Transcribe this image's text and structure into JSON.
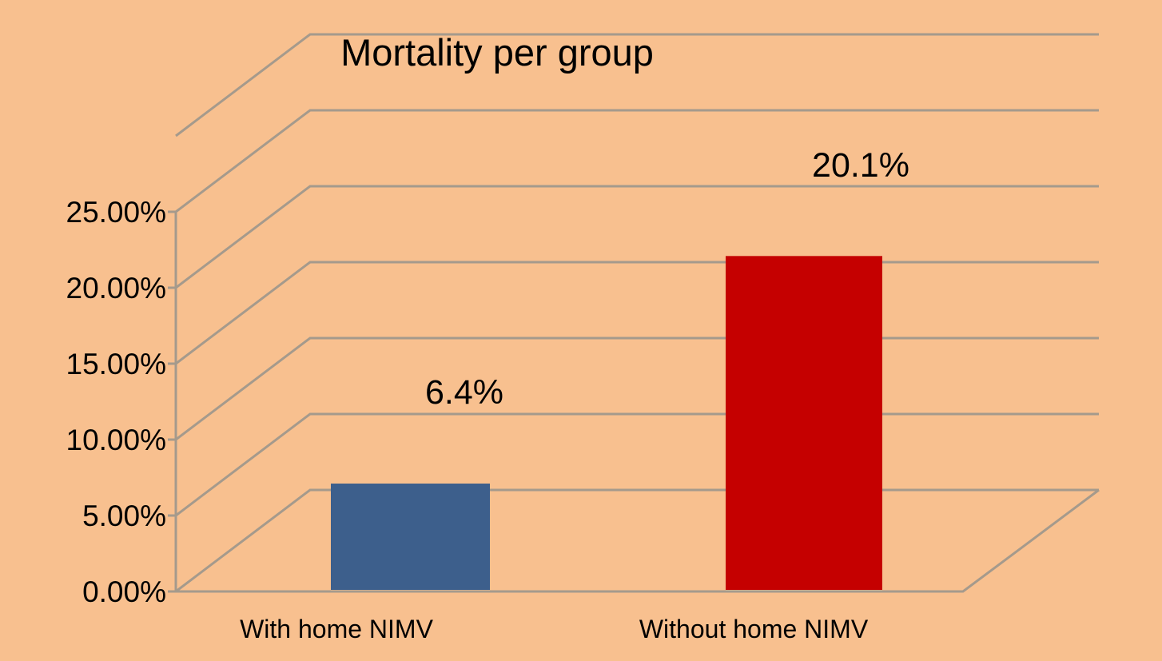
{
  "background": "#f8c08f",
  "chart_data": {
    "type": "bar",
    "title": "Mortality per group",
    "xlabel": "",
    "ylabel": "",
    "categories": [
      "With home NIMV",
      "Without home NIMV"
    ],
    "values": [
      6.4,
      20.1
    ],
    "data_labels": [
      "6.4%",
      "20.1%"
    ],
    "colors": [
      "#3d5f8c",
      "#c50000"
    ],
    "ylim": [
      0,
      25
    ],
    "y_ticks": [
      0,
      5,
      10,
      15,
      20,
      25
    ],
    "y_tick_labels": [
      "0.00%",
      "5.00%",
      "10.00%",
      "15.00%",
      "20.00%",
      "25.00%"
    ],
    "grid": true,
    "style": "3d-perspective",
    "legend": "none"
  }
}
